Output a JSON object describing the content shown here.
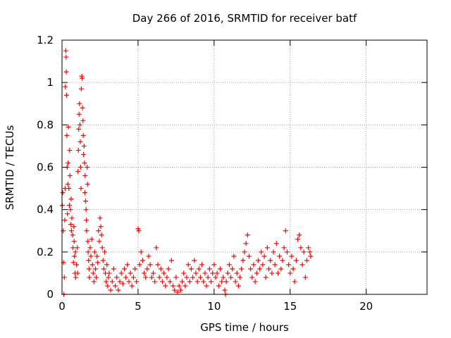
{
  "chart_data": {
    "type": "scatter",
    "title": "Day 266 of 2016, SRMTID for receiver batf",
    "xlabel": "GPS time / hours",
    "ylabel": "SRMTID / TECUs",
    "xlim": [
      0,
      24
    ],
    "ylim": [
      0,
      1.2
    ],
    "xticks": [
      "0",
      "5",
      "10",
      "15",
      "20"
    ],
    "xtick_values": [
      0,
      5,
      10,
      15,
      20
    ],
    "yticks": [
      "0",
      "0.2",
      "0.4",
      "0.6",
      "0.8",
      "1",
      "1.2"
    ],
    "ytick_values": [
      0,
      0.2,
      0.4,
      0.6,
      0.8,
      1.0,
      1.2
    ],
    "grid": true,
    "marker": "plus",
    "color": "#ff0000",
    "series": [
      {
        "points": [
          [
            0.02,
            0.42
          ],
          [
            0.05,
            0.48
          ],
          [
            0.08,
            0.3
          ],
          [
            0.1,
            0.15
          ],
          [
            0.12,
            0.0
          ],
          [
            0.15,
            0.08
          ],
          [
            0.18,
            0.35
          ],
          [
            0.2,
            0.5
          ],
          [
            0.22,
            0.98
          ],
          [
            0.25,
            1.15
          ],
          [
            0.27,
            1.12
          ],
          [
            0.28,
            1.05
          ],
          [
            0.3,
            0.94
          ],
          [
            0.32,
            0.75
          ],
          [
            0.34,
            0.6
          ],
          [
            0.36,
            0.38
          ],
          [
            0.38,
            0.52
          ],
          [
            0.4,
            0.62
          ],
          [
            0.42,
            0.79
          ],
          [
            0.45,
            0.5
          ],
          [
            0.48,
            0.42
          ],
          [
            0.5,
            0.68
          ],
          [
            0.52,
            0.56
          ],
          [
            0.55,
            0.4
          ],
          [
            0.58,
            0.33
          ],
          [
            0.6,
            0.45
          ],
          [
            0.62,
            0.3
          ],
          [
            0.65,
            0.36
          ],
          [
            0.7,
            0.28
          ],
          [
            0.72,
            0.22
          ],
          [
            0.75,
            0.15
          ],
          [
            0.78,
            0.32
          ],
          [
            0.8,
            0.25
          ],
          [
            0.82,
            0.18
          ],
          [
            0.85,
            0.1
          ],
          [
            0.88,
            0.2
          ],
          [
            0.9,
            0.08
          ],
          [
            0.95,
            0.14
          ],
          [
            1.0,
            0.22
          ],
          [
            1.02,
            0.1
          ],
          [
            1.05,
            0.58
          ],
          [
            1.08,
            0.68
          ],
          [
            1.1,
            0.78
          ],
          [
            1.12,
            0.85
          ],
          [
            1.15,
            0.9
          ],
          [
            1.18,
            0.8
          ],
          [
            1.2,
            0.72
          ],
          [
            1.22,
            0.6
          ],
          [
            1.25,
            0.5
          ],
          [
            1.27,
            0.97
          ],
          [
            1.3,
            1.03
          ],
          [
            1.32,
            1.02
          ],
          [
            1.35,
            0.88
          ],
          [
            1.38,
            0.82
          ],
          [
            1.4,
            0.75
          ],
          [
            1.42,
            0.66
          ],
          [
            1.45,
            0.7
          ],
          [
            1.48,
            0.62
          ],
          [
            1.5,
            0.48
          ],
          [
            1.52,
            0.56
          ],
          [
            1.55,
            0.44
          ],
          [
            1.58,
            0.4
          ],
          [
            1.6,
            0.35
          ],
          [
            1.62,
            0.3
          ],
          [
            1.65,
            0.6
          ],
          [
            1.68,
            0.52
          ],
          [
            1.7,
            0.25
          ],
          [
            1.72,
            0.2
          ],
          [
            1.75,
            0.16
          ],
          [
            1.78,
            0.12
          ],
          [
            1.8,
            0.08
          ],
          [
            1.85,
            0.22
          ],
          [
            1.9,
            0.18
          ],
          [
            1.95,
            0.26
          ],
          [
            2.0,
            0.14
          ],
          [
            2.05,
            0.1
          ],
          [
            2.1,
            0.06
          ],
          [
            2.15,
            0.2
          ],
          [
            2.2,
            0.12
          ],
          [
            2.25,
            0.08
          ],
          [
            2.3,
            0.18
          ],
          [
            2.35,
            0.15
          ],
          [
            2.4,
            0.3
          ],
          [
            2.45,
            0.25
          ],
          [
            2.5,
            0.36
          ],
          [
            2.55,
            0.32
          ],
          [
            2.6,
            0.28
          ],
          [
            2.65,
            0.22
          ],
          [
            2.7,
            0.16
          ],
          [
            2.75,
            0.12
          ],
          [
            2.8,
            0.2
          ],
          [
            2.85,
            0.1
          ],
          [
            2.9,
            0.06
          ],
          [
            2.95,
            0.14
          ],
          [
            3.0,
            0.04
          ],
          [
            3.05,
            0.08
          ],
          [
            3.1,
            0.1
          ],
          [
            3.2,
            0.02
          ],
          [
            3.3,
            0.06
          ],
          [
            3.4,
            0.12
          ],
          [
            3.5,
            0.04
          ],
          [
            3.6,
            0.08
          ],
          [
            3.7,
            0.02
          ],
          [
            3.8,
            0.06
          ],
          [
            3.9,
            0.1
          ],
          [
            4.0,
            0.05
          ],
          [
            4.1,
            0.12
          ],
          [
            4.2,
            0.08
          ],
          [
            4.3,
            0.14
          ],
          [
            4.4,
            0.06
          ],
          [
            4.5,
            0.1
          ],
          [
            4.6,
            0.04
          ],
          [
            4.7,
            0.08
          ],
          [
            4.8,
            0.12
          ],
          [
            4.9,
            0.06
          ],
          [
            5.0,
            0.31
          ],
          [
            5.05,
            0.3
          ],
          [
            5.1,
            0.14
          ],
          [
            5.2,
            0.2
          ],
          [
            5.3,
            0.16
          ],
          [
            5.4,
            0.1
          ],
          [
            5.5,
            0.08
          ],
          [
            5.6,
            0.12
          ],
          [
            5.7,
            0.18
          ],
          [
            5.8,
            0.14
          ],
          [
            5.9,
            0.08
          ],
          [
            6.0,
            0.1
          ],
          [
            6.1,
            0.06
          ],
          [
            6.2,
            0.22
          ],
          [
            6.3,
            0.14
          ],
          [
            6.4,
            0.08
          ],
          [
            6.5,
            0.12
          ],
          [
            6.6,
            0.06
          ],
          [
            6.7,
            0.1
          ],
          [
            6.8,
            0.04
          ],
          [
            6.9,
            0.08
          ],
          [
            7.0,
            0.12
          ],
          [
            7.1,
            0.06
          ],
          [
            7.2,
            0.16
          ],
          [
            7.3,
            0.04
          ],
          [
            7.4,
            0.02
          ],
          [
            7.5,
            0.08
          ],
          [
            7.6,
            0.01
          ],
          [
            7.7,
            0.04
          ],
          [
            7.8,
            0.02
          ],
          [
            7.9,
            0.06
          ],
          [
            8.0,
            0.1
          ],
          [
            8.1,
            0.04
          ],
          [
            8.2,
            0.08
          ],
          [
            8.3,
            0.14
          ],
          [
            8.4,
            0.06
          ],
          [
            8.5,
            0.12
          ],
          [
            8.6,
            0.08
          ],
          [
            8.7,
            0.16
          ],
          [
            8.8,
            0.1
          ],
          [
            8.9,
            0.06
          ],
          [
            9.0,
            0.12
          ],
          [
            9.1,
            0.08
          ],
          [
            9.2,
            0.14
          ],
          [
            9.3,
            0.06
          ],
          [
            9.4,
            0.1
          ],
          [
            9.5,
            0.04
          ],
          [
            9.6,
            0.08
          ],
          [
            9.7,
            0.12
          ],
          [
            9.8,
            0.06
          ],
          [
            9.9,
            0.1
          ],
          [
            10.0,
            0.14
          ],
          [
            10.1,
            0.08
          ],
          [
            10.2,
            0.1
          ],
          [
            10.3,
            0.04
          ],
          [
            10.4,
            0.12
          ],
          [
            10.5,
            0.06
          ],
          [
            10.6,
            0.08
          ],
          [
            10.7,
            0.02
          ],
          [
            10.75,
            0.0
          ],
          [
            10.8,
            0.06
          ],
          [
            10.9,
            0.1
          ],
          [
            11.0,
            0.14
          ],
          [
            11.1,
            0.08
          ],
          [
            11.2,
            0.12
          ],
          [
            11.3,
            0.18
          ],
          [
            11.4,
            0.06
          ],
          [
            11.5,
            0.1
          ],
          [
            11.6,
            0.04
          ],
          [
            11.7,
            0.08
          ],
          [
            11.8,
            0.12
          ],
          [
            11.9,
            0.16
          ],
          [
            12.0,
            0.2
          ],
          [
            12.1,
            0.24
          ],
          [
            12.2,
            0.28
          ],
          [
            12.3,
            0.18
          ],
          [
            12.4,
            0.12
          ],
          [
            12.5,
            0.08
          ],
          [
            12.6,
            0.14
          ],
          [
            12.7,
            0.06
          ],
          [
            12.8,
            0.1
          ],
          [
            12.9,
            0.16
          ],
          [
            13.0,
            0.12
          ],
          [
            13.1,
            0.2
          ],
          [
            13.2,
            0.14
          ],
          [
            13.3,
            0.18
          ],
          [
            13.4,
            0.08
          ],
          [
            13.5,
            0.22
          ],
          [
            13.6,
            0.12
          ],
          [
            13.7,
            0.16
          ],
          [
            13.8,
            0.1
          ],
          [
            13.9,
            0.2
          ],
          [
            14.0,
            0.14
          ],
          [
            14.1,
            0.24
          ],
          [
            14.2,
            0.1
          ],
          [
            14.3,
            0.18
          ],
          [
            14.4,
            0.12
          ],
          [
            14.5,
            0.16
          ],
          [
            14.6,
            0.22
          ],
          [
            14.7,
            0.3
          ],
          [
            14.8,
            0.2
          ],
          [
            14.9,
            0.14
          ],
          [
            15.0,
            0.1
          ],
          [
            15.1,
            0.18
          ],
          [
            15.2,
            0.12
          ],
          [
            15.3,
            0.06
          ],
          [
            15.4,
            0.16
          ],
          [
            15.5,
            0.26
          ],
          [
            15.6,
            0.28
          ],
          [
            15.7,
            0.22
          ],
          [
            15.8,
            0.14
          ],
          [
            15.9,
            0.2
          ],
          [
            16.0,
            0.08
          ],
          [
            16.1,
            0.16
          ],
          [
            16.2,
            0.22
          ],
          [
            16.3,
            0.2
          ],
          [
            16.35,
            0.18
          ]
        ]
      }
    ]
  }
}
